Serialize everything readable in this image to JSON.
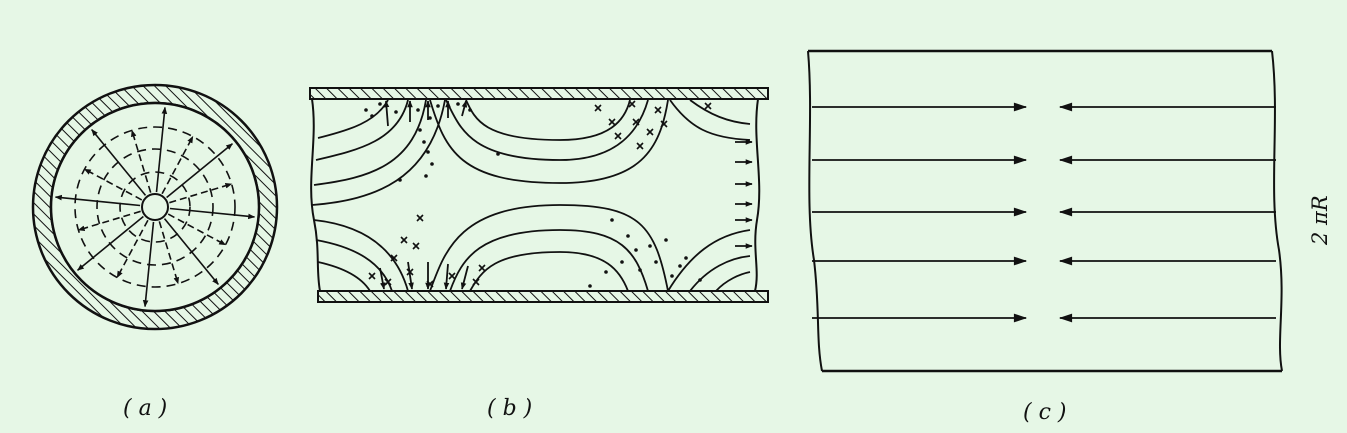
{
  "panels": {
    "a": {
      "caption": "( a )"
    },
    "b": {
      "caption": "( b )"
    },
    "c": {
      "caption": "( c )",
      "circumference_label": "2 πR"
    }
  },
  "colors": {
    "background": "#e6f7e6",
    "ink": "#111111"
  }
}
